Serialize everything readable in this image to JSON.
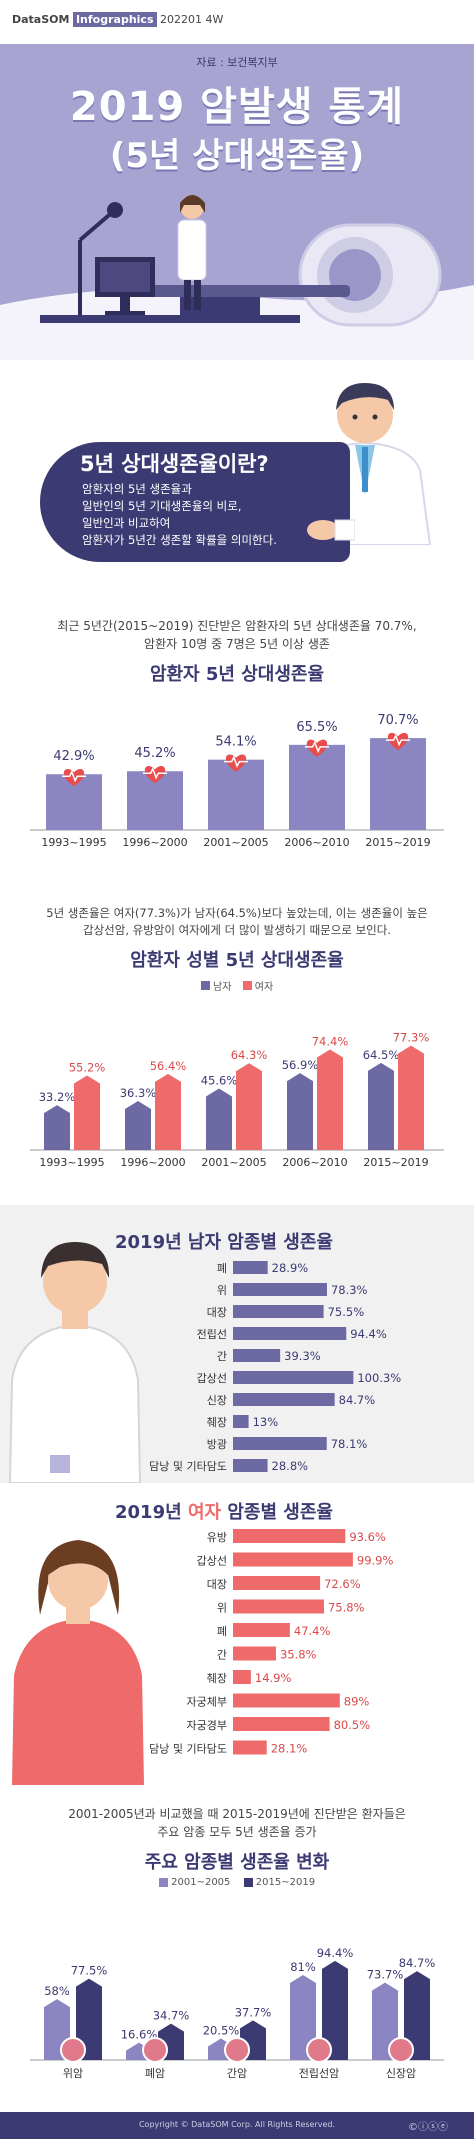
{
  "header": {
    "brand": "DataSOM",
    "brand_suffix": "Infographics",
    "issue": "202201 4W",
    "source": "자료 : 보건복지부",
    "title": "2019 암발생 통계",
    "subtitle": "(5년 상대생존율)"
  },
  "definition": {
    "title": "5년 상대생존율이란?",
    "lines": [
      "암환자의 5년 생존율과",
      "일반인의 5년 기대생존율의 비로,",
      "일반인과 비교하여",
      "암환자가 5년간 생존할 확률을 의미한다."
    ]
  },
  "section1": {
    "intro_lines": [
      "최근 5년간(2015~2019) 진단받은 암환자의 5년 상대생존율 70.7%,",
      "암환자 10명 중 7명은 5년 이상 생존"
    ],
    "title": "암환자 5년 상대생존율"
  },
  "section2": {
    "intro_lines": [
      "5년 생존율은 여자(77.3%)가 남자(64.5%)보다 높았는데, 이는 생존율이 높은",
      "갑상선암, 유방암이 여자에게 더 많이 발생하기 때문으로 보인다."
    ],
    "title": "암환자 성별 5년 상대생존율",
    "legend_male": "남자",
    "legend_female": "여자"
  },
  "section3": {
    "title": "2019년 남자 암종별 생존율"
  },
  "section4": {
    "title_year": "2019년",
    "title_gender": "여자",
    "title_rest": "암종별 생존율"
  },
  "section5": {
    "intro_lines": [
      "2001-2005년과 비교했을 때 2015-2019년에 진단받은 환자들은",
      "주요 암종 모두 5년 생존율 증가"
    ],
    "title": "주요 암종별 생존율 변화",
    "legend_a": "2001~2005",
    "legend_b": "2015~2019"
  },
  "footer": {
    "copyright": "Copyright © DataSOM Corp. All Rights Reserved."
  },
  "colors": {
    "purple": "#8b85c1",
    "dark_purple": "#4d4880",
    "navy": "#3c3a72",
    "red": "#ef6a6a",
    "header_bg": "#a7a4d1"
  },
  "chart_data": [
    {
      "type": "bar",
      "title": "암환자 5년 상대생존율",
      "categories": [
        "1993~1995",
        "1996~2000",
        "2001~2005",
        "2006~2010",
        "2015~2019"
      ],
      "values": [
        42.9,
        45.2,
        54.1,
        65.5,
        70.7
      ],
      "labels": [
        "42.9%",
        "45.2%",
        "54.1%",
        "65.5%",
        "70.7%"
      ],
      "ylim": [
        0,
        100
      ]
    },
    {
      "type": "bar",
      "title": "암환자 성별 5년 상대생존율",
      "categories": [
        "1993~1995",
        "1996~2000",
        "2001~2005",
        "2006~2010",
        "2015~2019"
      ],
      "series": [
        {
          "name": "남자",
          "values": [
            33.2,
            36.3,
            45.6,
            56.9,
            64.5
          ],
          "labels": [
            "33.2%",
            "36.3%",
            "45.6%",
            "56.9%",
            "64.5%"
          ]
        },
        {
          "name": "여자",
          "values": [
            55.2,
            56.4,
            64.3,
            74.4,
            77.3
          ],
          "labels": [
            "55.2%",
            "56.4%",
            "64.3%",
            "74.4%",
            "77.3%"
          ]
        }
      ],
      "ylim": [
        0,
        100
      ]
    },
    {
      "type": "bar",
      "orientation": "horizontal",
      "title": "2019년 남자 암종별 생존율",
      "categories": [
        "폐",
        "위",
        "대장",
        "전립선",
        "간",
        "갑상선",
        "신장",
        "췌장",
        "방광",
        "담낭 및 기타담도"
      ],
      "values": [
        28.9,
        78.3,
        75.5,
        94.4,
        39.3,
        100.3,
        84.7,
        13,
        78.1,
        28.8
      ],
      "labels": [
        "28.9%",
        "78.3%",
        "75.5%",
        "94.4%",
        "39.3%",
        "100.3%",
        "84.7%",
        "13%",
        "78.1%",
        "28.8%"
      ],
      "xlim": [
        0,
        105
      ]
    },
    {
      "type": "bar",
      "orientation": "horizontal",
      "title": "2019년 여자 암종별 생존율",
      "categories": [
        "유방",
        "갑상선",
        "대장",
        "위",
        "폐",
        "간",
        "췌장",
        "자궁체부",
        "자궁경부",
        "담낭 및 기타담도"
      ],
      "values": [
        93.6,
        99.9,
        72.6,
        75.8,
        47.4,
        35.8,
        14.9,
        89,
        80.5,
        28.1
      ],
      "labels": [
        "93.6%",
        "99.9%",
        "72.6%",
        "75.8%",
        "47.4%",
        "35.8%",
        "14.9%",
        "89%",
        "80.5%",
        "28.1%"
      ],
      "xlim": [
        0,
        105
      ]
    },
    {
      "type": "bar",
      "title": "주요 암종별 생존율 변화",
      "categories": [
        "위암",
        "폐암",
        "간암",
        "전립선암",
        "신장암"
      ],
      "series": [
        {
          "name": "2001~2005",
          "values": [
            58,
            16.6,
            20.5,
            81,
            73.7
          ],
          "labels": [
            "58%",
            "16.6%",
            "20.5%",
            "81%",
            "73.7%"
          ]
        },
        {
          "name": "2015~2019",
          "values": [
            77.5,
            34.7,
            37.7,
            94.4,
            84.7
          ],
          "labels": [
            "77.5%",
            "34.7%",
            "37.7%",
            "94.4%",
            "84.7%"
          ]
        }
      ],
      "ylim": [
        0,
        100
      ]
    }
  ]
}
